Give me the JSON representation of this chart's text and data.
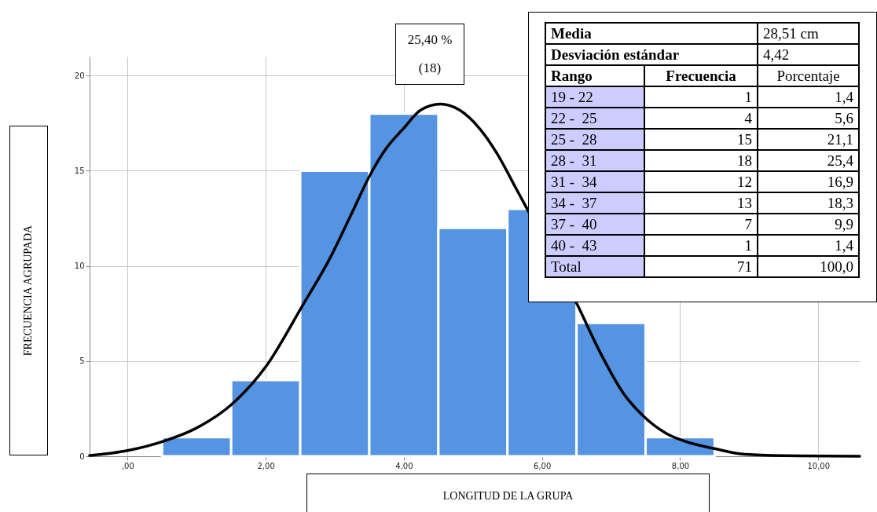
{
  "chart_data": {
    "type": "histogram",
    "xlabel": "LONGITUD DE LA GRUPA",
    "ylabel": "FRECUENCIA AGRUPADA",
    "bins": [
      0.5,
      1.5,
      2.5,
      3.5,
      4.5,
      5.5,
      6.5,
      7.5,
      8.5
    ],
    "values": [
      1,
      4,
      15,
      18,
      12,
      13,
      7,
      1
    ],
    "color": "#5594e2",
    "series": [
      {
        "type": "line",
        "color": "#000000",
        "x": [
          -0.55,
          0,
          0.53,
          0.98,
          1.5,
          2.0,
          2.53,
          2.93,
          3.25,
          3.5,
          3.75,
          3.99,
          4.25,
          4.53,
          4.8,
          5.1,
          5.35,
          5.62,
          6.1,
          6.52,
          6.85,
          7.18,
          7.5,
          7.8,
          8.06,
          8.5,
          8.94,
          9.5,
          10.6
        ],
        "values": [
          0.04,
          0.3,
          0.8,
          1.45,
          2.7,
          4.7,
          7.9,
          10.4,
          12.8,
          14.7,
          16.2,
          17.2,
          18.2,
          18.5,
          18.2,
          17.2,
          15.9,
          14.1,
          null,
          7.9,
          5.4,
          3.3,
          2.0,
          1.2,
          0.8,
          0.4,
          0.1,
          0.03,
          0
        ]
      }
    ],
    "xlim": [
      -0.55,
      10.6
    ],
    "ylim": [
      0,
      21
    ],
    "xticks": [
      {
        "value": 0,
        "label": ",00"
      },
      {
        "value": 2,
        "label": "2,00"
      },
      {
        "value": 4,
        "label": "4,00"
      },
      {
        "value": 6,
        "label": "6,00"
      },
      {
        "value": 8,
        "label": "8,00"
      },
      {
        "value": 10,
        "label": "10,00"
      }
    ],
    "yticks": [
      0,
      5,
      10,
      15,
      20
    ],
    "grid": true,
    "marker": "none",
    "line_style": "solid",
    "annotations": [
      "25,40 %",
      "(18)",
      "Media",
      "28,51 cm",
      "Desviación estándar",
      "4,42",
      "Rango",
      "Frecuencia",
      "Porcentaje",
      "19 - 22",
      "1",
      "1,4",
      "22 -  25",
      "4",
      "5,6",
      "25 -  28",
      "15",
      "21,1",
      "28 -  31",
      "18",
      "25,4",
      "31 -  34",
      "12",
      "16,9",
      "34 -  37",
      "13",
      "18,3",
      "37 -  40",
      "7",
      "9,9",
      "40 -  43",
      "1",
      "1,4",
      "Total",
      "71",
      "100,0"
    ]
  }
}
